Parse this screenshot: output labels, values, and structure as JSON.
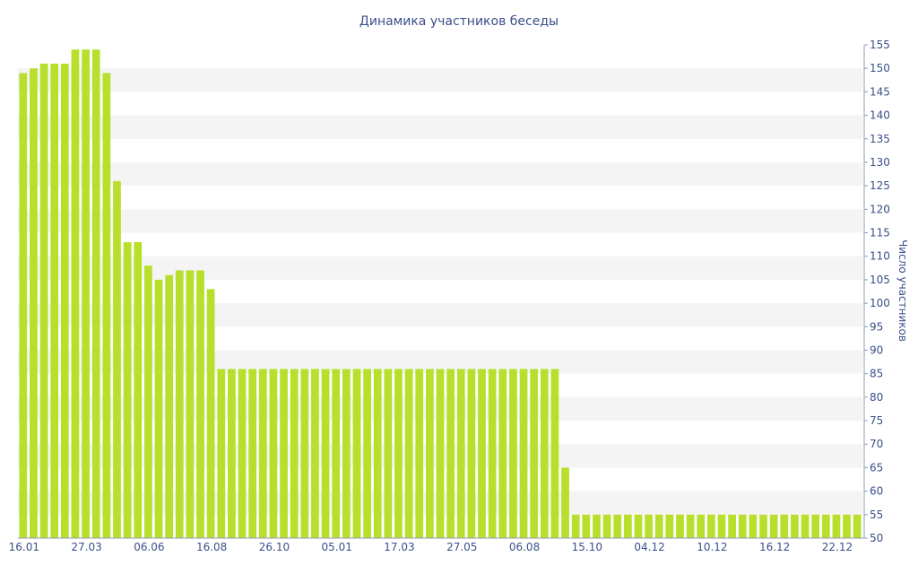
{
  "chart_data": {
    "type": "bar",
    "title": "Динамика участников беседы",
    "xlabel": "",
    "ylabel": "Число участников",
    "ylim": [
      50,
      155
    ],
    "y_ticks": [
      50,
      55,
      60,
      65,
      70,
      75,
      80,
      85,
      90,
      95,
      100,
      105,
      110,
      115,
      120,
      125,
      130,
      135,
      140,
      145,
      150,
      155
    ],
    "y_axis_side": "right",
    "grid": "alternating horizontal bands",
    "x_tick_labels": [
      {
        "label": "16.01",
        "index": 0
      },
      {
        "label": "27.03",
        "index": 6
      },
      {
        "label": "06.06",
        "index": 12
      },
      {
        "label": "16.08",
        "index": 18
      },
      {
        "label": "26.10",
        "index": 24
      },
      {
        "label": "05.01",
        "index": 30
      },
      {
        "label": "17.03",
        "index": 36
      },
      {
        "label": "27.05",
        "index": 42
      },
      {
        "label": "06.08",
        "index": 48
      },
      {
        "label": "15.10",
        "index": 54
      },
      {
        "label": "04.12",
        "index": 60
      },
      {
        "label": "10.12",
        "index": 66
      },
      {
        "label": "16.12",
        "index": 72
      },
      {
        "label": "22.12",
        "index": 78
      }
    ],
    "values": [
      149,
      150,
      151,
      151,
      151,
      154,
      154,
      154,
      149,
      126,
      113,
      113,
      108,
      105,
      106,
      107,
      107,
      107,
      103,
      86,
      86,
      86,
      86,
      86,
      86,
      86,
      86,
      86,
      86,
      86,
      86,
      86,
      86,
      86,
      86,
      86,
      86,
      86,
      86,
      86,
      86,
      86,
      86,
      86,
      86,
      86,
      86,
      86,
      86,
      86,
      86,
      86,
      65,
      55,
      55,
      55,
      55,
      55,
      55,
      55,
      55,
      55,
      55,
      55,
      55,
      55,
      55,
      55,
      55,
      55,
      55,
      55,
      55,
      55,
      55,
      55,
      55,
      55,
      55,
      55,
      55
    ],
    "colors": {
      "bar": "#b8df2c",
      "text": "#3b4f8a",
      "band": "#f4f4f4",
      "axis": "#8f9bb6"
    }
  }
}
